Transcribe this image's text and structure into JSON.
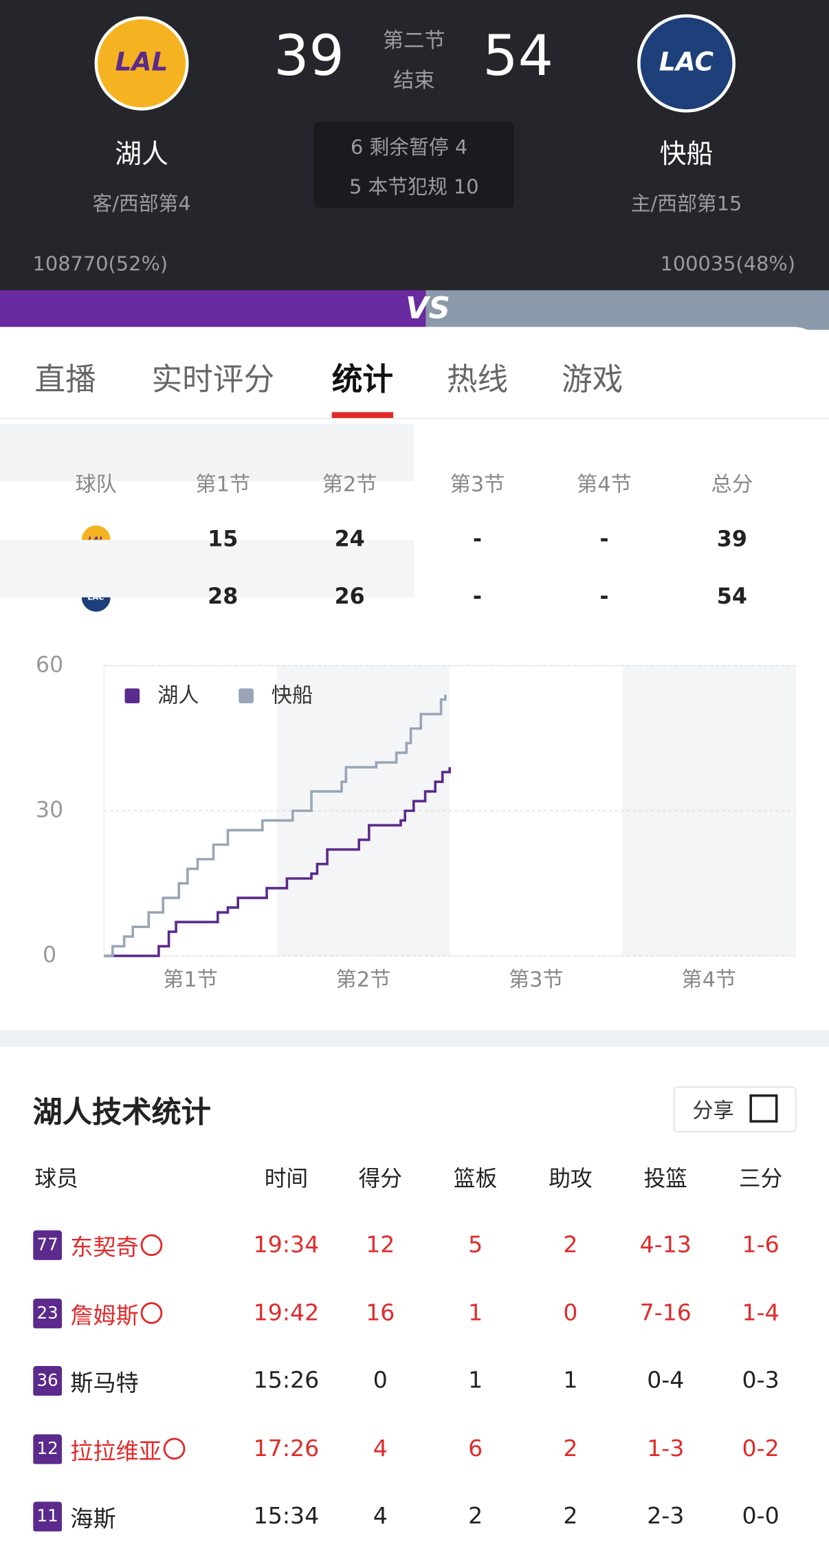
{
  "header": {
    "away": {
      "name": "湖人",
      "logo": "LAL",
      "info": "客/西部第4",
      "support": "108770(52%)",
      "score": 39
    },
    "home": {
      "name": "快船",
      "logo": "LAC",
      "info": "主/西部第15",
      "support": "100035(48%)",
      "score": 54
    },
    "period": "第二节",
    "status": "结束",
    "timeouts": "6 剩余暂停 4",
    "fouls": "5 本节犯规 10",
    "vs": "VS"
  },
  "tabs": [
    "直播",
    "实时评分",
    "统计",
    "热线",
    "游戏"
  ],
  "active_tab": 2,
  "quarter_table": {
    "columns": [
      "球队",
      "第1节",
      "第2节",
      "第3节",
      "第4节",
      "总分"
    ],
    "rows": [
      {
        "logo": "LAL",
        "cells": [
          15,
          24,
          "-",
          "-",
          39
        ]
      },
      {
        "logo": "LAC",
        "cells": [
          28,
          26,
          "-",
          "-",
          54
        ]
      }
    ]
  },
  "chart_data": {
    "type": "line",
    "xlim": [
      0,
      48
    ],
    "ylim": [
      0,
      60
    ],
    "yticks": [
      0,
      30,
      60
    ],
    "grid": true,
    "categories": [
      "第1节",
      "第2节",
      "第3节",
      "第4节"
    ],
    "series": [
      {
        "name": "湖人",
        "color": "#5b2a8c",
        "x": [
          0,
          3.8,
          4.5,
          5,
          7.9,
          8.6,
          9.3,
          11.3,
          12.7,
          14.4,
          14.8,
          15.5,
          17.7,
          18.4,
          20.6,
          20.9,
          21.5,
          22.3,
          23,
          23.5,
          24
        ],
        "values": [
          0,
          2,
          5,
          7,
          9,
          10,
          12,
          14,
          16,
          17,
          19,
          22,
          24,
          27,
          28,
          30,
          32,
          34,
          36,
          38,
          39
        ]
      },
      {
        "name": "快船",
        "color": "#98a6b5",
        "x": [
          0,
          0.6,
          1.4,
          2,
          3.1,
          4.1,
          5.2,
          5.8,
          6.5,
          7.6,
          8.6,
          11,
          13.1,
          14.4,
          16.5,
          16.8,
          18.9,
          20.3,
          21,
          21.3,
          22,
          23.4,
          23.7
        ],
        "values": [
          0,
          2,
          4,
          6,
          9,
          12,
          15,
          18,
          20,
          23,
          26,
          28,
          30,
          34,
          36,
          39,
          40,
          42,
          44,
          47,
          50,
          53,
          54
        ]
      }
    ]
  },
  "stats": {
    "title": "湖人技术统计",
    "share": "分享",
    "columns": [
      "球员",
      "时间",
      "得分",
      "篮板",
      "助攻",
      "投篮",
      "三分"
    ],
    "players": [
      {
        "number": 77,
        "name": "东契奇",
        "highlight": true,
        "stats": [
          "19:34",
          12,
          5,
          2,
          "4-13",
          "1-6"
        ]
      },
      {
        "number": 23,
        "name": "詹姆斯",
        "highlight": true,
        "stats": [
          "19:42",
          16,
          1,
          0,
          "7-16",
          "1-4"
        ]
      },
      {
        "number": 36,
        "name": "斯马特",
        "highlight": false,
        "stats": [
          "15:26",
          0,
          1,
          1,
          "0-4",
          "0-3"
        ]
      },
      {
        "number": 12,
        "name": "拉拉维亚",
        "highlight": true,
        "stats": [
          "17:26",
          4,
          6,
          2,
          "1-3",
          "0-2"
        ]
      },
      {
        "number": 11,
        "name": "海斯",
        "highlight": false,
        "stats": [
          "15:34",
          4,
          2,
          2,
          "2-3",
          "0-0"
        ]
      }
    ]
  }
}
